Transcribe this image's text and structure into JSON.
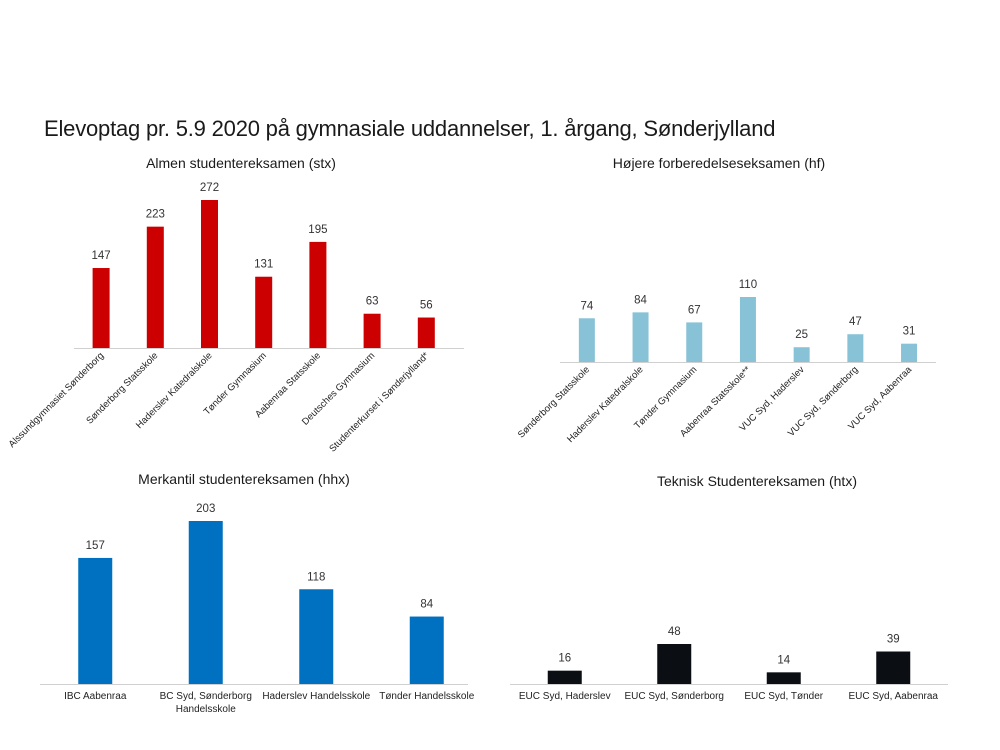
{
  "title": "Elevoptag pr. 5.9 2020 på gymnasiale uddannelser, 1. årgang, Sønderjylland",
  "chart_data": [
    {
      "type": "bar",
      "title": "Almen studentereksamen (stx)",
      "categories": [
        "Alssundgymnasiet Sønderborg",
        "Sønderborg Statsskole",
        "Haderslev Katedralskole",
        "Tønder Gymnasium",
        "Aabenraa Statsskole",
        "Deutsches Gymnasium",
        "Studenterkurset i Sønderjylland*"
      ],
      "values": [
        147,
        223,
        272,
        131,
        195,
        63,
        56
      ],
      "color": "#cc0000",
      "label_style": "rotated"
    },
    {
      "type": "bar",
      "title": "Højere forberedelseseksamen (hf)",
      "categories": [
        "Sønderborg Statsskole",
        "Haderslev Katedralskole",
        "Tønder Gymnasium",
        "Aabenraa Statsskole**",
        "VUC Syd, Haderslev",
        "VUC Syd, Sønderborg",
        "VUC Syd, Aabenraa"
      ],
      "values": [
        74,
        84,
        67,
        110,
        25,
        47,
        31
      ],
      "color": "#87c2d6",
      "label_style": "rotated"
    },
    {
      "type": "bar",
      "title": "Merkantil studentereksamen (hhx)",
      "categories": [
        "IBC Aabenraa",
        "BC Syd, Sønderborg Handelsskole",
        "Haderslev Handelsskole",
        "Tønder Handelsskole"
      ],
      "category_lines": [
        [
          "IBC Aabenraa"
        ],
        [
          "BC Syd, Sønderborg",
          "Handelsskole"
        ],
        [
          "Haderslev Handelsskole"
        ],
        [
          "Tønder Handelsskole"
        ]
      ],
      "values": [
        157,
        203,
        118,
        84
      ],
      "color": "#0070c0",
      "label_style": "horizontal"
    },
    {
      "type": "bar",
      "title": "Teknisk Studentereksamen (htx)",
      "categories": [
        "EUC Syd, Haderslev",
        "EUC Syd, Sønderborg",
        "EUC Syd, Tønder",
        "EUC Syd, Aabenraa"
      ],
      "category_lines": [
        [
          "EUC Syd, Haderslev"
        ],
        [
          "EUC Syd, Sønderborg"
        ],
        [
          "EUC Syd, Tønder"
        ],
        [
          "EUC Syd, Aabenraa"
        ]
      ],
      "values": [
        16,
        48,
        14,
        39
      ],
      "color": "#0b0f14",
      "label_style": "horizontal"
    }
  ]
}
